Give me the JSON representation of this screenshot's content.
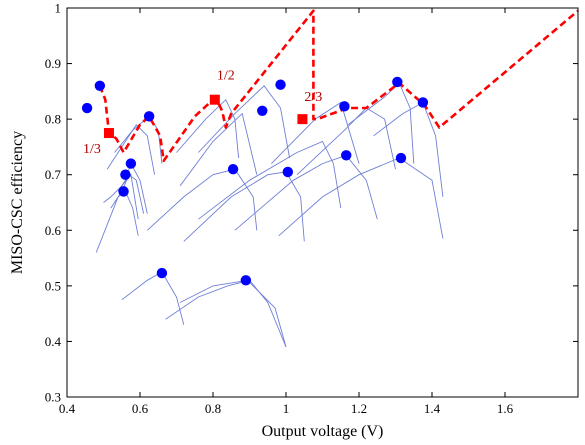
{
  "chart_data": {
    "type": "line",
    "title": "",
    "xlabel": "Output voltage (V)",
    "ylabel": "MISO-CSC efficiency",
    "xlim": [
      0.4,
      1.8
    ],
    "ylim": [
      0.3,
      1.0
    ],
    "xticks": [
      0.4,
      0.6,
      0.8,
      1.0,
      1.2,
      1.4,
      1.6
    ],
    "yticks": [
      0.3,
      0.4,
      0.5,
      0.6,
      0.7,
      0.8,
      0.9,
      1.0
    ],
    "xtick_labels": [
      "0.4",
      "0.6",
      "0.8",
      "1",
      "1.2",
      "1.4",
      "1.6"
    ],
    "ytick_labels": [
      "0.3",
      "0.4",
      "0.5",
      "0.6",
      "0.7",
      "0.8",
      "0.9",
      "1"
    ],
    "grid": false,
    "legend": "none",
    "colors": {
      "curves": "#6f7fd6",
      "peaks": "#0000ff",
      "envelope": "#ff0000",
      "ratio_markers": "#ff0000",
      "ratio_labels": "#b00000"
    },
    "envelope": {
      "name": "",
      "style": "dashed",
      "x": [
        0.49,
        0.505,
        0.515,
        0.535,
        0.555,
        0.6,
        0.625,
        0.655,
        0.665,
        0.75,
        0.8,
        0.81,
        0.825,
        0.835,
        0.85,
        1.075,
        1.075,
        1.085,
        1.17,
        1.22,
        1.31,
        1.38,
        1.42,
        1.8
      ],
      "y": [
        0.86,
        0.835,
        0.775,
        0.765,
        0.74,
        0.79,
        0.805,
        0.77,
        0.725,
        0.805,
        0.835,
        0.835,
        0.815,
        0.785,
        0.81,
        0.995,
        0.8,
        0.8,
        0.82,
        0.82,
        0.865,
        0.825,
        0.785,
        0.995
      ]
    },
    "curves": [
      {
        "x": [
          0.5,
          0.52,
          0.55,
          0.575,
          0.595
        ],
        "y": [
          0.65,
          0.66,
          0.68,
          0.7,
          0.62
        ]
      },
      {
        "x": [
          0.48,
          0.51,
          0.54,
          0.56,
          0.58,
          0.595
        ],
        "y": [
          0.56,
          0.61,
          0.66,
          0.67,
          0.64,
          0.59
        ]
      },
      {
        "x": [
          0.52,
          0.55,
          0.57,
          0.59,
          0.61
        ],
        "y": [
          0.64,
          0.67,
          0.7,
          0.69,
          0.63
        ]
      },
      {
        "x": [
          0.54,
          0.56,
          0.575,
          0.6,
          0.62
        ],
        "y": [
          0.67,
          0.69,
          0.72,
          0.69,
          0.63
        ]
      },
      {
        "x": [
          0.51,
          0.55,
          0.59,
          0.62,
          0.64
        ],
        "y": [
          0.71,
          0.75,
          0.79,
          0.77,
          0.7
        ]
      },
      {
        "x": [
          0.53,
          0.58,
          0.625,
          0.65,
          0.66
        ],
        "y": [
          0.74,
          0.78,
          0.805,
          0.78,
          0.72
        ]
      },
      {
        "x": [
          0.7,
          0.78,
          0.835,
          0.86,
          0.87
        ],
        "y": [
          0.74,
          0.8,
          0.835,
          0.8,
          0.73
        ]
      },
      {
        "x": [
          0.76,
          0.86,
          0.94,
          0.985,
          1.01
        ],
        "y": [
          0.74,
          0.81,
          0.86,
          0.82,
          0.73
        ]
      },
      {
        "x": [
          0.71,
          0.8,
          0.88,
          0.92
        ],
        "y": [
          0.68,
          0.76,
          0.81,
          0.7
        ]
      },
      {
        "x": [
          0.62,
          0.72,
          0.8,
          0.86,
          0.91,
          0.92
        ],
        "y": [
          0.6,
          0.66,
          0.7,
          0.71,
          0.66,
          0.6
        ]
      },
      {
        "x": [
          0.72,
          0.85,
          0.95,
          1.0,
          1.04,
          1.05
        ],
        "y": [
          0.58,
          0.66,
          0.7,
          0.705,
          0.66,
          0.58
        ]
      },
      {
        "x": [
          0.76,
          0.9,
          1.03,
          1.1,
          1.13,
          1.15
        ],
        "y": [
          0.62,
          0.69,
          0.74,
          0.76,
          0.72,
          0.64
        ]
      },
      {
        "x": [
          0.86,
          1.02,
          1.1,
          1.165,
          1.22,
          1.25
        ],
        "y": [
          0.6,
          0.69,
          0.72,
          0.735,
          0.69,
          0.62
        ]
      },
      {
        "x": [
          0.96,
          1.08,
          1.15,
          1.2
        ],
        "y": [
          0.72,
          0.8,
          0.83,
          0.72
        ]
      },
      {
        "x": [
          1.03,
          1.16,
          1.22,
          1.27,
          1.3
        ],
        "y": [
          0.7,
          0.78,
          0.82,
          0.8,
          0.71
        ]
      },
      {
        "x": [
          0.98,
          1.1,
          1.2,
          1.31,
          1.4,
          1.43
        ],
        "y": [
          0.59,
          0.66,
          0.7,
          0.73,
          0.69,
          0.585
        ]
      },
      {
        "x": [
          1.17,
          1.27,
          1.31,
          1.34,
          1.35
        ],
        "y": [
          0.79,
          0.84,
          0.865,
          0.82,
          0.72
        ]
      },
      {
        "x": [
          1.24,
          1.32,
          1.375,
          1.41,
          1.43
        ],
        "y": [
          0.77,
          0.81,
          0.83,
          0.77,
          0.66
        ]
      },
      {
        "x": [
          0.55,
          0.62,
          0.66,
          0.7,
          0.72
        ],
        "y": [
          0.475,
          0.51,
          0.525,
          0.48,
          0.43
        ]
      },
      {
        "x": [
          0.71,
          0.8,
          0.895,
          0.97,
          1.0
        ],
        "y": [
          0.47,
          0.5,
          0.51,
          0.46,
          0.39
        ]
      },
      {
        "x": [
          0.67,
          0.76,
          0.84,
          0.9,
          0.95,
          1.0
        ],
        "y": [
          0.44,
          0.48,
          0.5,
          0.51,
          0.47,
          0.39
        ]
      }
    ],
    "peaks": {
      "x": [
        0.455,
        0.49,
        0.555,
        0.56,
        0.575,
        0.625,
        0.855,
        0.935,
        0.985,
        1.005,
        1.16,
        1.165,
        1.305,
        1.315,
        1.375,
        0.66,
        0.89
      ],
      "y": [
        0.82,
        0.86,
        0.67,
        0.7,
        0.72,
        0.805,
        0.71,
        0.815,
        0.862,
        0.705,
        0.823,
        0.735,
        0.867,
        0.73,
        0.83,
        0.523,
        0.51
      ]
    },
    "ratio_markers": [
      {
        "label": "1/3",
        "x": 0.515,
        "y": 0.775
      },
      {
        "label": "1/2",
        "x": 0.805,
        "y": 0.835
      },
      {
        "label": "2/3",
        "x": 1.045,
        "y": 0.8
      }
    ]
  }
}
